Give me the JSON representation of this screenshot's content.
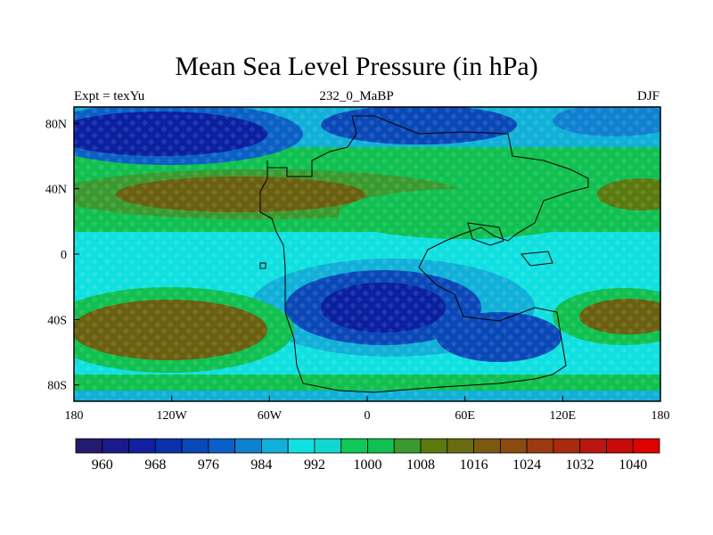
{
  "title": "Mean Sea Level Pressure (in hPa)",
  "subtitle_left": "Expt = texYu",
  "subtitle_center": "232_0_MaBP",
  "subtitle_right": "DJF",
  "longitude_ticks": [
    "180",
    "120W",
    "60W",
    "0",
    "60E",
    "120E",
    "180"
  ],
  "latitude_ticks": [
    "80N",
    "40N",
    "0",
    "40S",
    "80S"
  ],
  "colorbar": {
    "labels": [
      "960",
      "968",
      "976",
      "984",
      "992",
      "1000",
      "1008",
      "1016",
      "1024",
      "1032",
      "1040"
    ],
    "colors": [
      "#241a6e",
      "#1a1a8c",
      "#10209e",
      "#0a30aa",
      "#0a48b8",
      "#0a60c4",
      "#1080d0",
      "#10b0d8",
      "#10e0e0",
      "#10d8d0",
      "#10c858",
      "#10c050",
      "#3a9a30",
      "#5a7a10",
      "#6a6a10",
      "#7a5a10",
      "#8a4a10",
      "#9a3a10",
      "#a82a10",
      "#b81810",
      "#c80a0a",
      "#e00000"
    ]
  },
  "regions": {
    "north_polar_low": "#0a1a90",
    "north_high_belt": "#6a6010",
    "equatorial": "#10e0e0",
    "tropical_green": "#10c050",
    "south_low": "#0a20a0",
    "south_high": "#6a6010"
  }
}
